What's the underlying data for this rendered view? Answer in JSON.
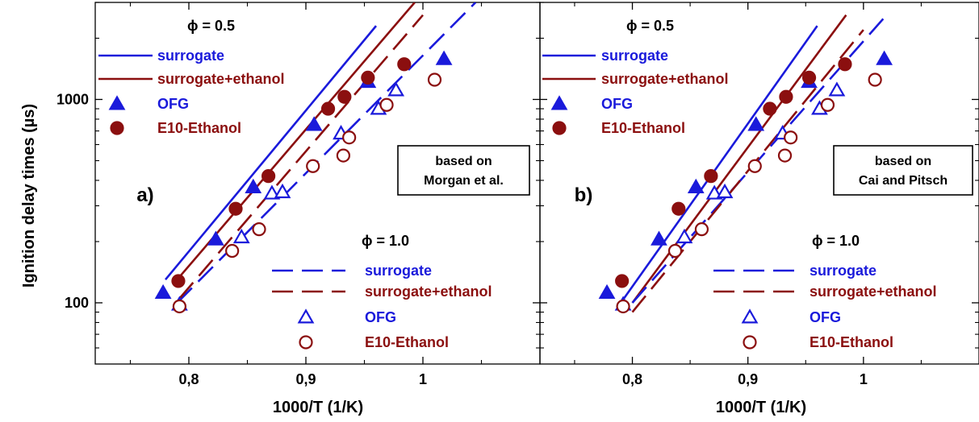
{
  "colors": {
    "blue": "#1a1adb",
    "red": "#8b0f0f",
    "black": "#000000"
  },
  "shared": {
    "xlabel": "1000/T (1/K)",
    "ylabel": "Ignition delay times (µs)",
    "xticks": [
      {
        "v": 0.8,
        "label": "0,8"
      },
      {
        "v": 0.9,
        "label": "0,9"
      },
      {
        "v": 1.0,
        "label": "1"
      }
    ],
    "yticks": [
      {
        "v": 100,
        "label": "100"
      },
      {
        "v": 1000,
        "label": "1000"
      }
    ]
  },
  "chart_data": [
    {
      "type": "scatter",
      "panel": "a)",
      "xlim": [
        0.72,
        1.1
      ],
      "ylim": [
        50,
        3000
      ],
      "yscale": "log",
      "annotation": [
        "based on",
        "Morgan et al."
      ],
      "phi_05_label": "ϕ = 0.5",
      "phi_10_label": "ϕ = 1.0",
      "legend_05": [
        {
          "name": "surrogate",
          "style": "solid-line",
          "color": "#1a1adb"
        },
        {
          "name": "surrogate+ethanol",
          "style": "solid-line",
          "color": "#8b0f0f"
        },
        {
          "name": "OFG",
          "style": "filled-triangle",
          "color": "#1a1adb"
        },
        {
          "name": "E10-Ethanol",
          "style": "filled-circle",
          "color": "#8b0f0f"
        }
      ],
      "legend_10": [
        {
          "name": "surrogate",
          "style": "dashed-line",
          "color": "#1a1adb"
        },
        {
          "name": "surrogate+ethanol",
          "style": "dashed-line",
          "color": "#8b0f0f"
        },
        {
          "name": "OFG",
          "style": "open-triangle",
          "color": "#1a1adb"
        },
        {
          "name": "E10-Ethanol",
          "style": "open-circle",
          "color": "#8b0f0f"
        }
      ],
      "series": [
        {
          "name": "surrogate",
          "phi": 0.5,
          "kind": "line",
          "dash": "solid",
          "color": "#1a1adb",
          "x": [
            0.78,
            0.96
          ],
          "y": [
            130,
            2300
          ]
        },
        {
          "name": "surrogate+ethanol",
          "phi": 0.5,
          "kind": "line",
          "dash": "solid",
          "color": "#8b0f0f",
          "x": [
            0.79,
            0.993
          ],
          "y": [
            130,
            3000
          ]
        },
        {
          "name": "surrogate",
          "phi": 1.0,
          "kind": "line",
          "dash": "dashed",
          "color": "#1a1adb",
          "x": [
            0.79,
            1.045
          ],
          "y": [
            100,
            3000
          ]
        },
        {
          "name": "surrogate+ethanol",
          "phi": 1.0,
          "kind": "line",
          "dash": "dashed",
          "color": "#8b0f0f",
          "x": [
            0.792,
            1.0
          ],
          "y": [
            105,
            2600
          ]
        },
        {
          "name": "OFG",
          "phi": 0.5,
          "kind": "marker",
          "marker": "triangle",
          "filled": true,
          "color": "#1a1adb",
          "x": [
            0.778,
            0.823,
            0.855,
            0.907,
            0.953,
            1.018
          ],
          "y": [
            112,
            205,
            370,
            750,
            1220,
            1580
          ]
        },
        {
          "name": "E10-Ethanol",
          "phi": 0.5,
          "kind": "marker",
          "marker": "circle",
          "filled": true,
          "color": "#8b0f0f",
          "x": [
            0.791,
            0.84,
            0.868,
            0.919,
            0.933,
            0.953,
            0.984
          ],
          "y": [
            128,
            290,
            420,
            900,
            1030,
            1280,
            1490
          ]
        },
        {
          "name": "OFG",
          "phi": 1.0,
          "kind": "marker",
          "marker": "triangle",
          "filled": false,
          "color": "#1a1adb",
          "x": [
            0.792,
            0.845,
            0.871,
            0.88,
            0.93,
            0.962,
            0.977
          ],
          "y": [
            98,
            210,
            345,
            350,
            680,
            900,
            1110
          ]
        },
        {
          "name": "E10-Ethanol",
          "phi": 1.0,
          "kind": "marker",
          "marker": "circle",
          "filled": false,
          "color": "#8b0f0f",
          "x": [
            0.792,
            0.837,
            0.86,
            0.906,
            0.932,
            0.937,
            0.969,
            1.01
          ],
          "y": [
            96,
            180,
            230,
            470,
            530,
            650,
            940,
            1250
          ]
        }
      ]
    },
    {
      "type": "scatter",
      "panel": "b)",
      "xlim": [
        0.72,
        1.1
      ],
      "ylim": [
        50,
        3000
      ],
      "yscale": "log",
      "annotation": [
        "based on",
        "Cai and Pitsch"
      ],
      "phi_05_label": "ϕ = 0.5",
      "phi_10_label": "ϕ = 1.0",
      "legend_05": [
        {
          "name": "surrogate",
          "style": "solid-line",
          "color": "#1a1adb"
        },
        {
          "name": "surrogate+ethanol",
          "style": "solid-line",
          "color": "#8b0f0f"
        },
        {
          "name": "OFG",
          "style": "filled-triangle",
          "color": "#1a1adb"
        },
        {
          "name": "E10-Ethanol",
          "style": "filled-circle",
          "color": "#8b0f0f"
        }
      ],
      "legend_10": [
        {
          "name": "surrogate",
          "style": "dashed-line",
          "color": "#1a1adb"
        },
        {
          "name": "surrogate+ethanol",
          "style": "dashed-line",
          "color": "#8b0f0f"
        },
        {
          "name": "OFG",
          "style": "open-triangle",
          "color": "#1a1adb"
        },
        {
          "name": "E10-Ethanol",
          "style": "open-circle",
          "color": "#8b0f0f"
        }
      ],
      "series": [
        {
          "name": "surrogate",
          "phi": 0.5,
          "kind": "line",
          "dash": "solid",
          "color": "#1a1adb",
          "x": [
            0.79,
            0.96
          ],
          "y": [
            100,
            2300
          ]
        },
        {
          "name": "surrogate+ethanol",
          "phi": 0.5,
          "kind": "line",
          "dash": "solid",
          "color": "#8b0f0f",
          "x": [
            0.8,
            0.985
          ],
          "y": [
            100,
            2600
          ]
        },
        {
          "name": "surrogate",
          "phi": 1.0,
          "kind": "line",
          "dash": "dashed",
          "color": "#1a1adb",
          "x": [
            0.8,
            1.02
          ],
          "y": [
            100,
            2600
          ]
        },
        {
          "name": "surrogate+ethanol",
          "phi": 1.0,
          "kind": "line",
          "dash": "dashed",
          "color": "#8b0f0f",
          "x": [
            0.8,
            1.0
          ],
          "y": [
            90,
            2200
          ]
        },
        {
          "name": "OFG",
          "phi": 0.5,
          "kind": "marker",
          "marker": "triangle",
          "filled": true,
          "color": "#1a1adb",
          "x": [
            0.778,
            0.823,
            0.855,
            0.907,
            0.953,
            1.018
          ],
          "y": [
            112,
            205,
            370,
            750,
            1220,
            1580
          ]
        },
        {
          "name": "E10-Ethanol",
          "phi": 0.5,
          "kind": "marker",
          "marker": "circle",
          "filled": true,
          "color": "#8b0f0f",
          "x": [
            0.791,
            0.84,
            0.868,
            0.919,
            0.933,
            0.953,
            0.984
          ],
          "y": [
            128,
            290,
            420,
            900,
            1030,
            1280,
            1490
          ]
        },
        {
          "name": "OFG",
          "phi": 1.0,
          "kind": "marker",
          "marker": "triangle",
          "filled": false,
          "color": "#1a1adb",
          "x": [
            0.792,
            0.845,
            0.871,
            0.88,
            0.93,
            0.962,
            0.977
          ],
          "y": [
            98,
            210,
            345,
            350,
            680,
            900,
            1110
          ]
        },
        {
          "name": "E10-Ethanol",
          "phi": 1.0,
          "kind": "marker",
          "marker": "circle",
          "filled": false,
          "color": "#8b0f0f",
          "x": [
            0.792,
            0.837,
            0.86,
            0.906,
            0.932,
            0.937,
            0.969,
            1.01
          ],
          "y": [
            96,
            180,
            230,
            470,
            530,
            650,
            940,
            1250
          ]
        }
      ]
    }
  ]
}
